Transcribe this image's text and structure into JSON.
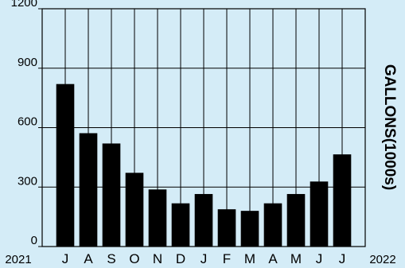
{
  "chart_data": {
    "type": "bar",
    "title": "",
    "xlabel": "",
    "ylabel": "GALLONS(1000s)",
    "categories": [
      "J",
      "A",
      "S",
      "O",
      "N",
      "D",
      "J",
      "F",
      "M",
      "A",
      "M",
      "J",
      "J"
    ],
    "values": [
      820,
      572,
      520,
      372,
      288,
      218,
      265,
      188,
      180,
      218,
      265,
      328,
      465
    ],
    "ylim": [
      0,
      1200
    ],
    "yticks": [
      "0",
      "300",
      "600",
      "900",
      "1200"
    ],
    "year_start_label": "2021",
    "year_end_label": "2022",
    "grid": true,
    "bar_color": "#000000",
    "background_color": "#d4ecf7"
  }
}
